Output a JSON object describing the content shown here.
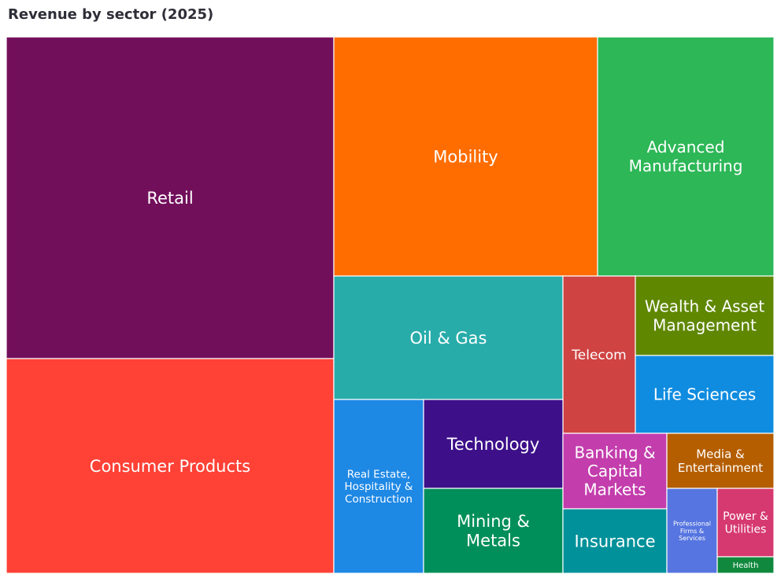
{
  "chart_data": {
    "type": "treemap",
    "title": "Revenue by sector (2025)",
    "sectors": [
      {
        "name": "Retail",
        "color": "#720F5B"
      },
      {
        "name": "Consumer Products",
        "color": "#FF4136"
      },
      {
        "name": "Mobility",
        "color": "#FF6D00"
      },
      {
        "name": "Advanced Manufacturing",
        "color": "#2DB757"
      },
      {
        "name": "Oil & Gas",
        "color": "#27ACAA"
      },
      {
        "name": "Telecom",
        "color": "#D04343"
      },
      {
        "name": "Wealth & Asset Management",
        "color": "#5F8700"
      },
      {
        "name": "Life Sciences",
        "color": "#0F8CE0"
      },
      {
        "name": "Real Estate, Hospitality & Construction",
        "color": "#1E88E5"
      },
      {
        "name": "Technology",
        "color": "#3D108A"
      },
      {
        "name": "Mining & Metals",
        "color": "#008F5A"
      },
      {
        "name": "Banking & Capital Markets",
        "color": "#C33DAC"
      },
      {
        "name": "Media & Entertainment",
        "color": "#B55E00"
      },
      {
        "name": "Insurance",
        "color": "#00919A"
      },
      {
        "name": "Professional Firms & Services",
        "color": "#5675E0"
      },
      {
        "name": "Power & Utilities",
        "color": "#D6396F"
      },
      {
        "name": "Health",
        "color": "#10893E"
      }
    ]
  }
}
